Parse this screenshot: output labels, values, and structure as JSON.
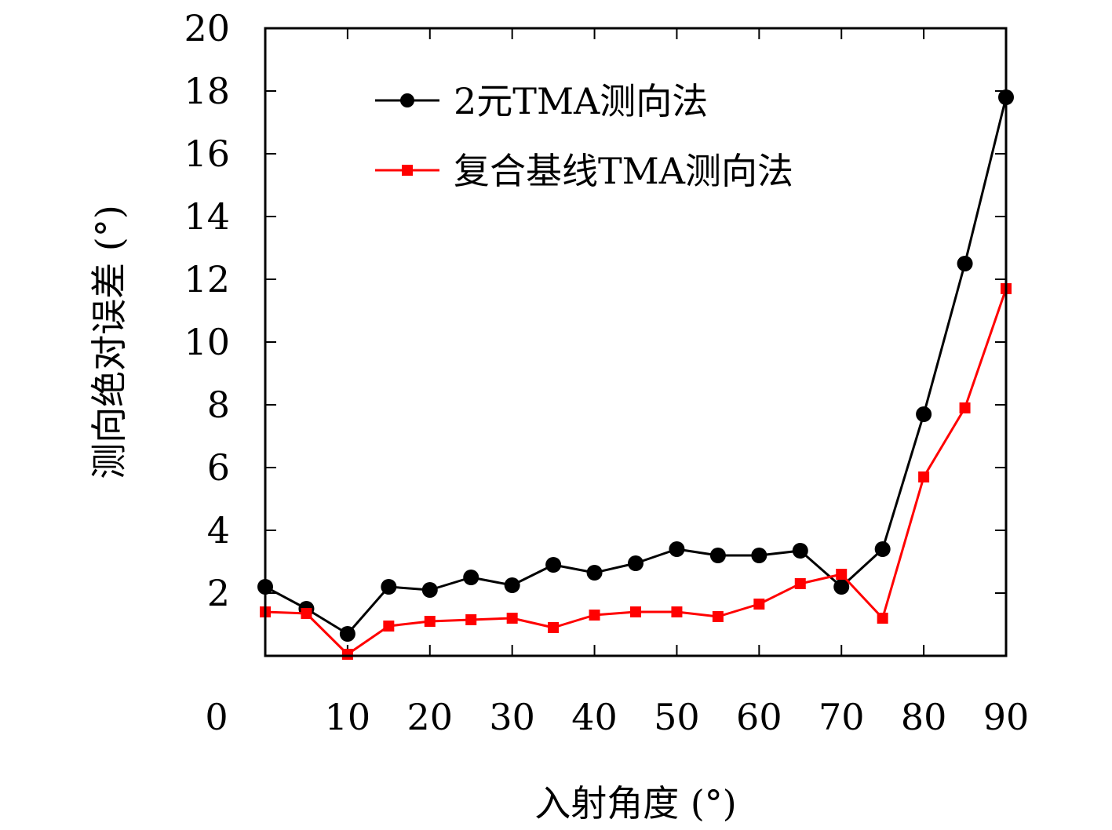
{
  "chart_data": {
    "type": "line",
    "xlabel": "入射角度 (°)",
    "ylabel": "测向绝对误差 (°)",
    "xlim": [
      0,
      90
    ],
    "ylim": [
      0,
      20
    ],
    "x_ticks": [
      "0",
      "10",
      "20",
      "30",
      "40",
      "50",
      "60",
      "70",
      "80",
      "90"
    ],
    "y_ticks": [
      "2",
      "4",
      "6",
      "8",
      "10",
      "12",
      "14",
      "16",
      "18",
      "20"
    ],
    "grid": false,
    "legend_position": "top-right",
    "x": [
      0,
      5,
      10,
      15,
      20,
      25,
      30,
      35,
      40,
      45,
      50,
      55,
      60,
      65,
      70,
      75,
      80,
      85,
      90
    ],
    "series": [
      {
        "name": "2元TMA测向法",
        "color": "#000000",
        "marker": "circle",
        "values": [
          2.2,
          1.5,
          0.7,
          2.2,
          2.1,
          2.5,
          2.25,
          2.9,
          2.65,
          2.95,
          3.4,
          3.2,
          3.2,
          3.35,
          2.2,
          3.4,
          7.7,
          12.5,
          17.8
        ]
      },
      {
        "name": "复合基线TMA测向法",
        "color": "#ff0000",
        "marker": "square",
        "values": [
          1.4,
          1.35,
          0.05,
          0.95,
          1.1,
          1.15,
          1.2,
          0.9,
          1.3,
          1.4,
          1.4,
          1.25,
          1.65,
          2.3,
          2.6,
          1.2,
          5.7,
          7.9,
          11.7
        ]
      }
    ]
  }
}
